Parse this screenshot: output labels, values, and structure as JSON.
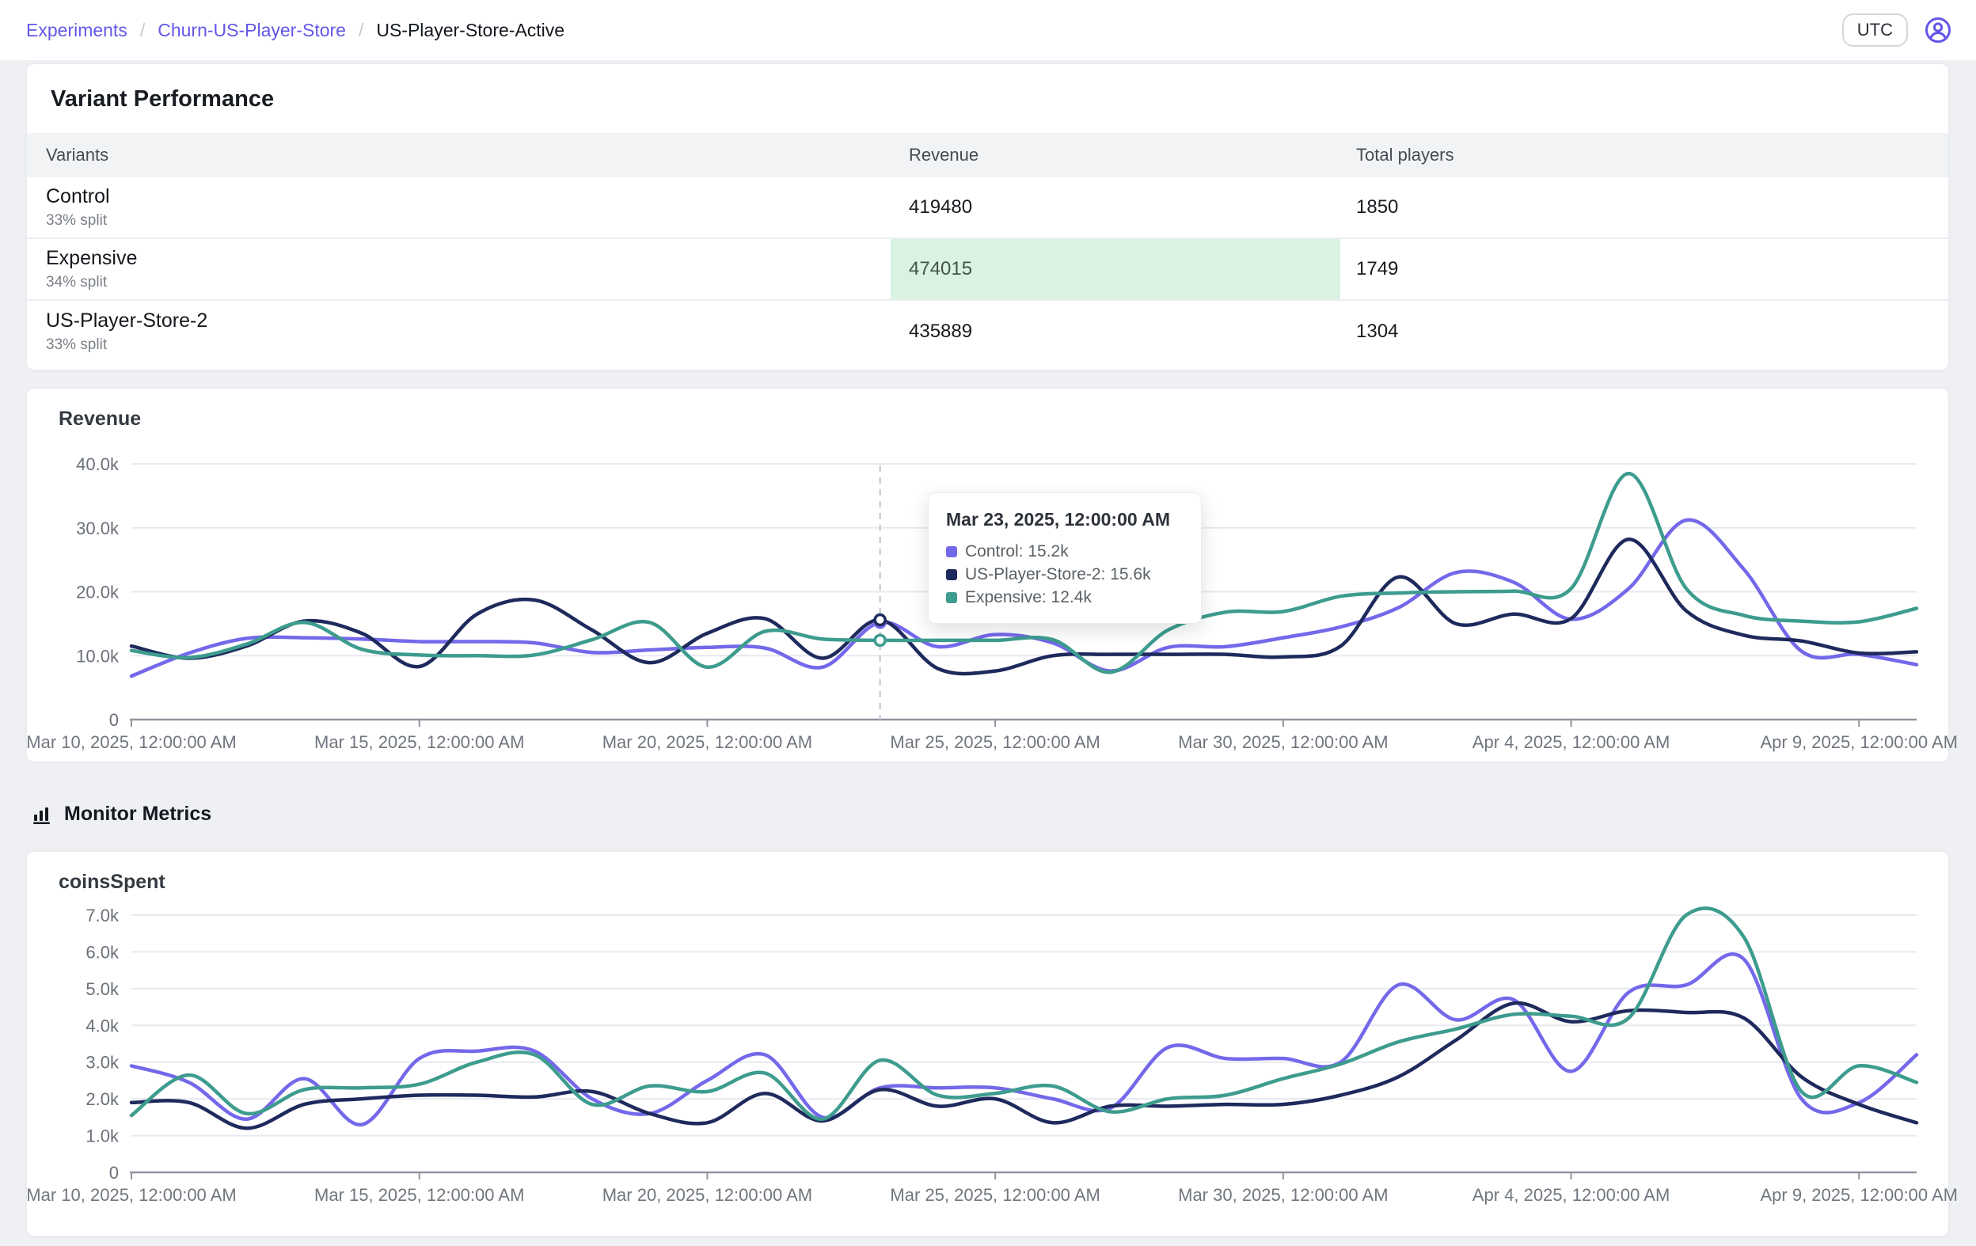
{
  "breadcrumb": {
    "items": [
      {
        "label": "Experiments",
        "link": true
      },
      {
        "label": "Churn-US-Player-Store",
        "link": true
      },
      {
        "label": "US-Player-Store-Active",
        "link": false
      }
    ],
    "separator": "/"
  },
  "topbar": {
    "timezone_label": "UTC"
  },
  "colors": {
    "control": "#7468ea",
    "us_player_store_2": "#1e2a5c",
    "expensive": "#3d9c8e",
    "highlight_bg": "#d9f2e1",
    "highlight_text": "#445548",
    "link": "#6358e8",
    "axis": "#8f959d",
    "grid": "#e8eaf1",
    "hover_line": "#c0c4ca"
  },
  "variant_performance": {
    "title": "Variant Performance",
    "columns": [
      "Variants",
      "Revenue",
      "Total players"
    ],
    "rows": [
      {
        "name": "Control",
        "split": "33% split",
        "revenue": "419480",
        "players": "1850",
        "highlight": false
      },
      {
        "name": "Expensive",
        "split": "34% split",
        "revenue": "474015",
        "players": "1749",
        "highlight": true
      },
      {
        "name": "US-Player-Store-2",
        "split": "33% split",
        "revenue": "435889",
        "players": "1304",
        "highlight": false
      }
    ]
  },
  "monitor_metrics": {
    "title": "Monitor Metrics"
  },
  "revenue_tooltip": {
    "title": "Mar 23, 2025, 12:00:00 AM",
    "rows": [
      {
        "label": "Control",
        "value": "15.2k",
        "color": "#7468ea"
      },
      {
        "label": "US-Player-Store-2",
        "value": "15.6k",
        "color": "#1e2a5c"
      },
      {
        "label": "Expensive",
        "value": "12.4k",
        "color": "#3d9c8e"
      }
    ]
  },
  "chart_data": [
    {
      "type": "line",
      "title": "Revenue",
      "svg_id": "svg-revenue",
      "value_unit": "thousands",
      "x_start_date": "Mar 10, 2025",
      "x_days_total": 31,
      "x_tick_days": [
        0,
        5,
        10,
        15,
        20,
        25,
        30
      ],
      "x_tick_labels": [
        "Mar 10, 2025, 12:00:00 AM",
        "Mar 15, 2025, 12:00:00 AM",
        "Mar 20, 2025, 12:00:00 AM",
        "Mar 25, 2025, 12:00:00 AM",
        "Mar 30, 2025, 12:00:00 AM",
        "Apr 4, 2025, 12:00:00 AM",
        "Apr 9, 2025, 12:00:00 AM"
      ],
      "ylim_k": [
        0,
        40
      ],
      "y_tick_labels": [
        "0",
        "10.0k",
        "20.0k",
        "30.0k",
        "40.0k"
      ],
      "grid": true,
      "legend_position": "none",
      "hover": {
        "day_index": 13
      },
      "series": [
        {
          "name": "Control",
          "color": "#7468ea",
          "values_k": [
            6.8,
            10.4,
            12.7,
            12.8,
            12.6,
            12.2,
            12.2,
            12.0,
            10.5,
            10.9,
            11.3,
            11.2,
            8.2,
            15.2,
            11.4,
            13.3,
            12.0,
            7.6,
            11.3,
            11.4,
            12.8,
            14.5,
            17.5,
            23.0,
            21.5,
            15.7,
            20.5,
            31.2,
            23.5,
            10.7,
            10.2,
            8.6
          ]
        },
        {
          "name": "US-Player-Store-2",
          "color": "#1e2a5c",
          "values_k": [
            11.5,
            9.6,
            11.5,
            15.4,
            13.5,
            8.3,
            16.5,
            18.7,
            14.0,
            8.9,
            13.5,
            15.8,
            9.6,
            15.6,
            8.0,
            7.6,
            10.0,
            10.2,
            10.2,
            10.2,
            9.8,
            11.5,
            22.3,
            15.0,
            16.5,
            15.8,
            28.2,
            17.0,
            13.2,
            12.3,
            10.4,
            10.6
          ]
        },
        {
          "name": "Expensive",
          "color": "#3d9c8e",
          "values_k": [
            10.8,
            9.7,
            11.8,
            15.2,
            11.0,
            10.1,
            10.0,
            10.1,
            12.5,
            15.2,
            8.2,
            13.8,
            12.6,
            12.4,
            12.4,
            12.4,
            12.5,
            7.4,
            14.0,
            16.8,
            16.9,
            19.3,
            19.8,
            20.0,
            20.1,
            20.5,
            38.5,
            20.5,
            16.3,
            15.4,
            15.3,
            17.4
          ]
        }
      ],
      "geom": {
        "left": 117,
        "right": 2372,
        "zero_y": 418,
        "top_y": 95,
        "label_y_offset": 36
      }
    },
    {
      "type": "line",
      "title": "coinsSpent",
      "svg_id": "svg-coins",
      "value_unit": "thousands",
      "x_start_date": "Mar 10, 2025",
      "x_days_total": 31,
      "x_tick_days": [
        0,
        5,
        10,
        15,
        20,
        25,
        30
      ],
      "x_tick_labels": [
        "Mar 10, 2025, 12:00:00 AM",
        "Mar 15, 2025, 12:00:00 AM",
        "Mar 20, 2025, 12:00:00 AM",
        "Mar 25, 2025, 12:00:00 AM",
        "Mar 30, 2025, 12:00:00 AM",
        "Apr 4, 2025, 12:00:00 AM",
        "Apr 9, 2025, 12:00:00 AM"
      ],
      "ylim_k": [
        0,
        7
      ],
      "y_tick_labels": [
        "0",
        "1.0k",
        "2.0k",
        "3.0k",
        "4.0k",
        "5.0k",
        "6.0k",
        "7.0k"
      ],
      "grid": true,
      "legend_position": "none",
      "series": [
        {
          "name": "Control",
          "color": "#7468ea",
          "values_k": [
            2.9,
            2.45,
            1.45,
            2.55,
            1.3,
            3.1,
            3.3,
            3.3,
            2.0,
            1.6,
            2.5,
            3.2,
            1.5,
            2.3,
            2.3,
            2.3,
            2.0,
            1.75,
            3.4,
            3.1,
            3.1,
            3.0,
            5.1,
            4.15,
            4.7,
            2.75,
            4.9,
            5.1,
            5.8,
            2.0,
            1.9,
            3.2
          ]
        },
        {
          "name": "US-Player-Store-2",
          "color": "#1e2a5c",
          "values_k": [
            1.9,
            1.9,
            1.2,
            1.85,
            2.0,
            2.1,
            2.1,
            2.05,
            2.2,
            1.6,
            1.35,
            2.15,
            1.4,
            2.25,
            1.8,
            2.0,
            1.35,
            1.8,
            1.8,
            1.85,
            1.85,
            2.1,
            2.6,
            3.6,
            4.6,
            4.1,
            4.4,
            4.35,
            4.2,
            2.6,
            1.85,
            1.35
          ]
        },
        {
          "name": "Expensive",
          "color": "#3d9c8e",
          "values_k": [
            1.55,
            2.65,
            1.6,
            2.25,
            2.3,
            2.4,
            3.0,
            3.2,
            1.85,
            2.35,
            2.2,
            2.7,
            1.45,
            3.05,
            2.1,
            2.15,
            2.35,
            1.65,
            2.0,
            2.1,
            2.55,
            2.95,
            3.55,
            3.9,
            4.3,
            4.25,
            4.2,
            7.0,
            6.4,
            2.2,
            2.9,
            2.45
          ]
        }
      ],
      "geom": {
        "left": 117,
        "right": 2372,
        "zero_y": 405,
        "top_y": 80,
        "label_y_offset": 36
      }
    }
  ]
}
